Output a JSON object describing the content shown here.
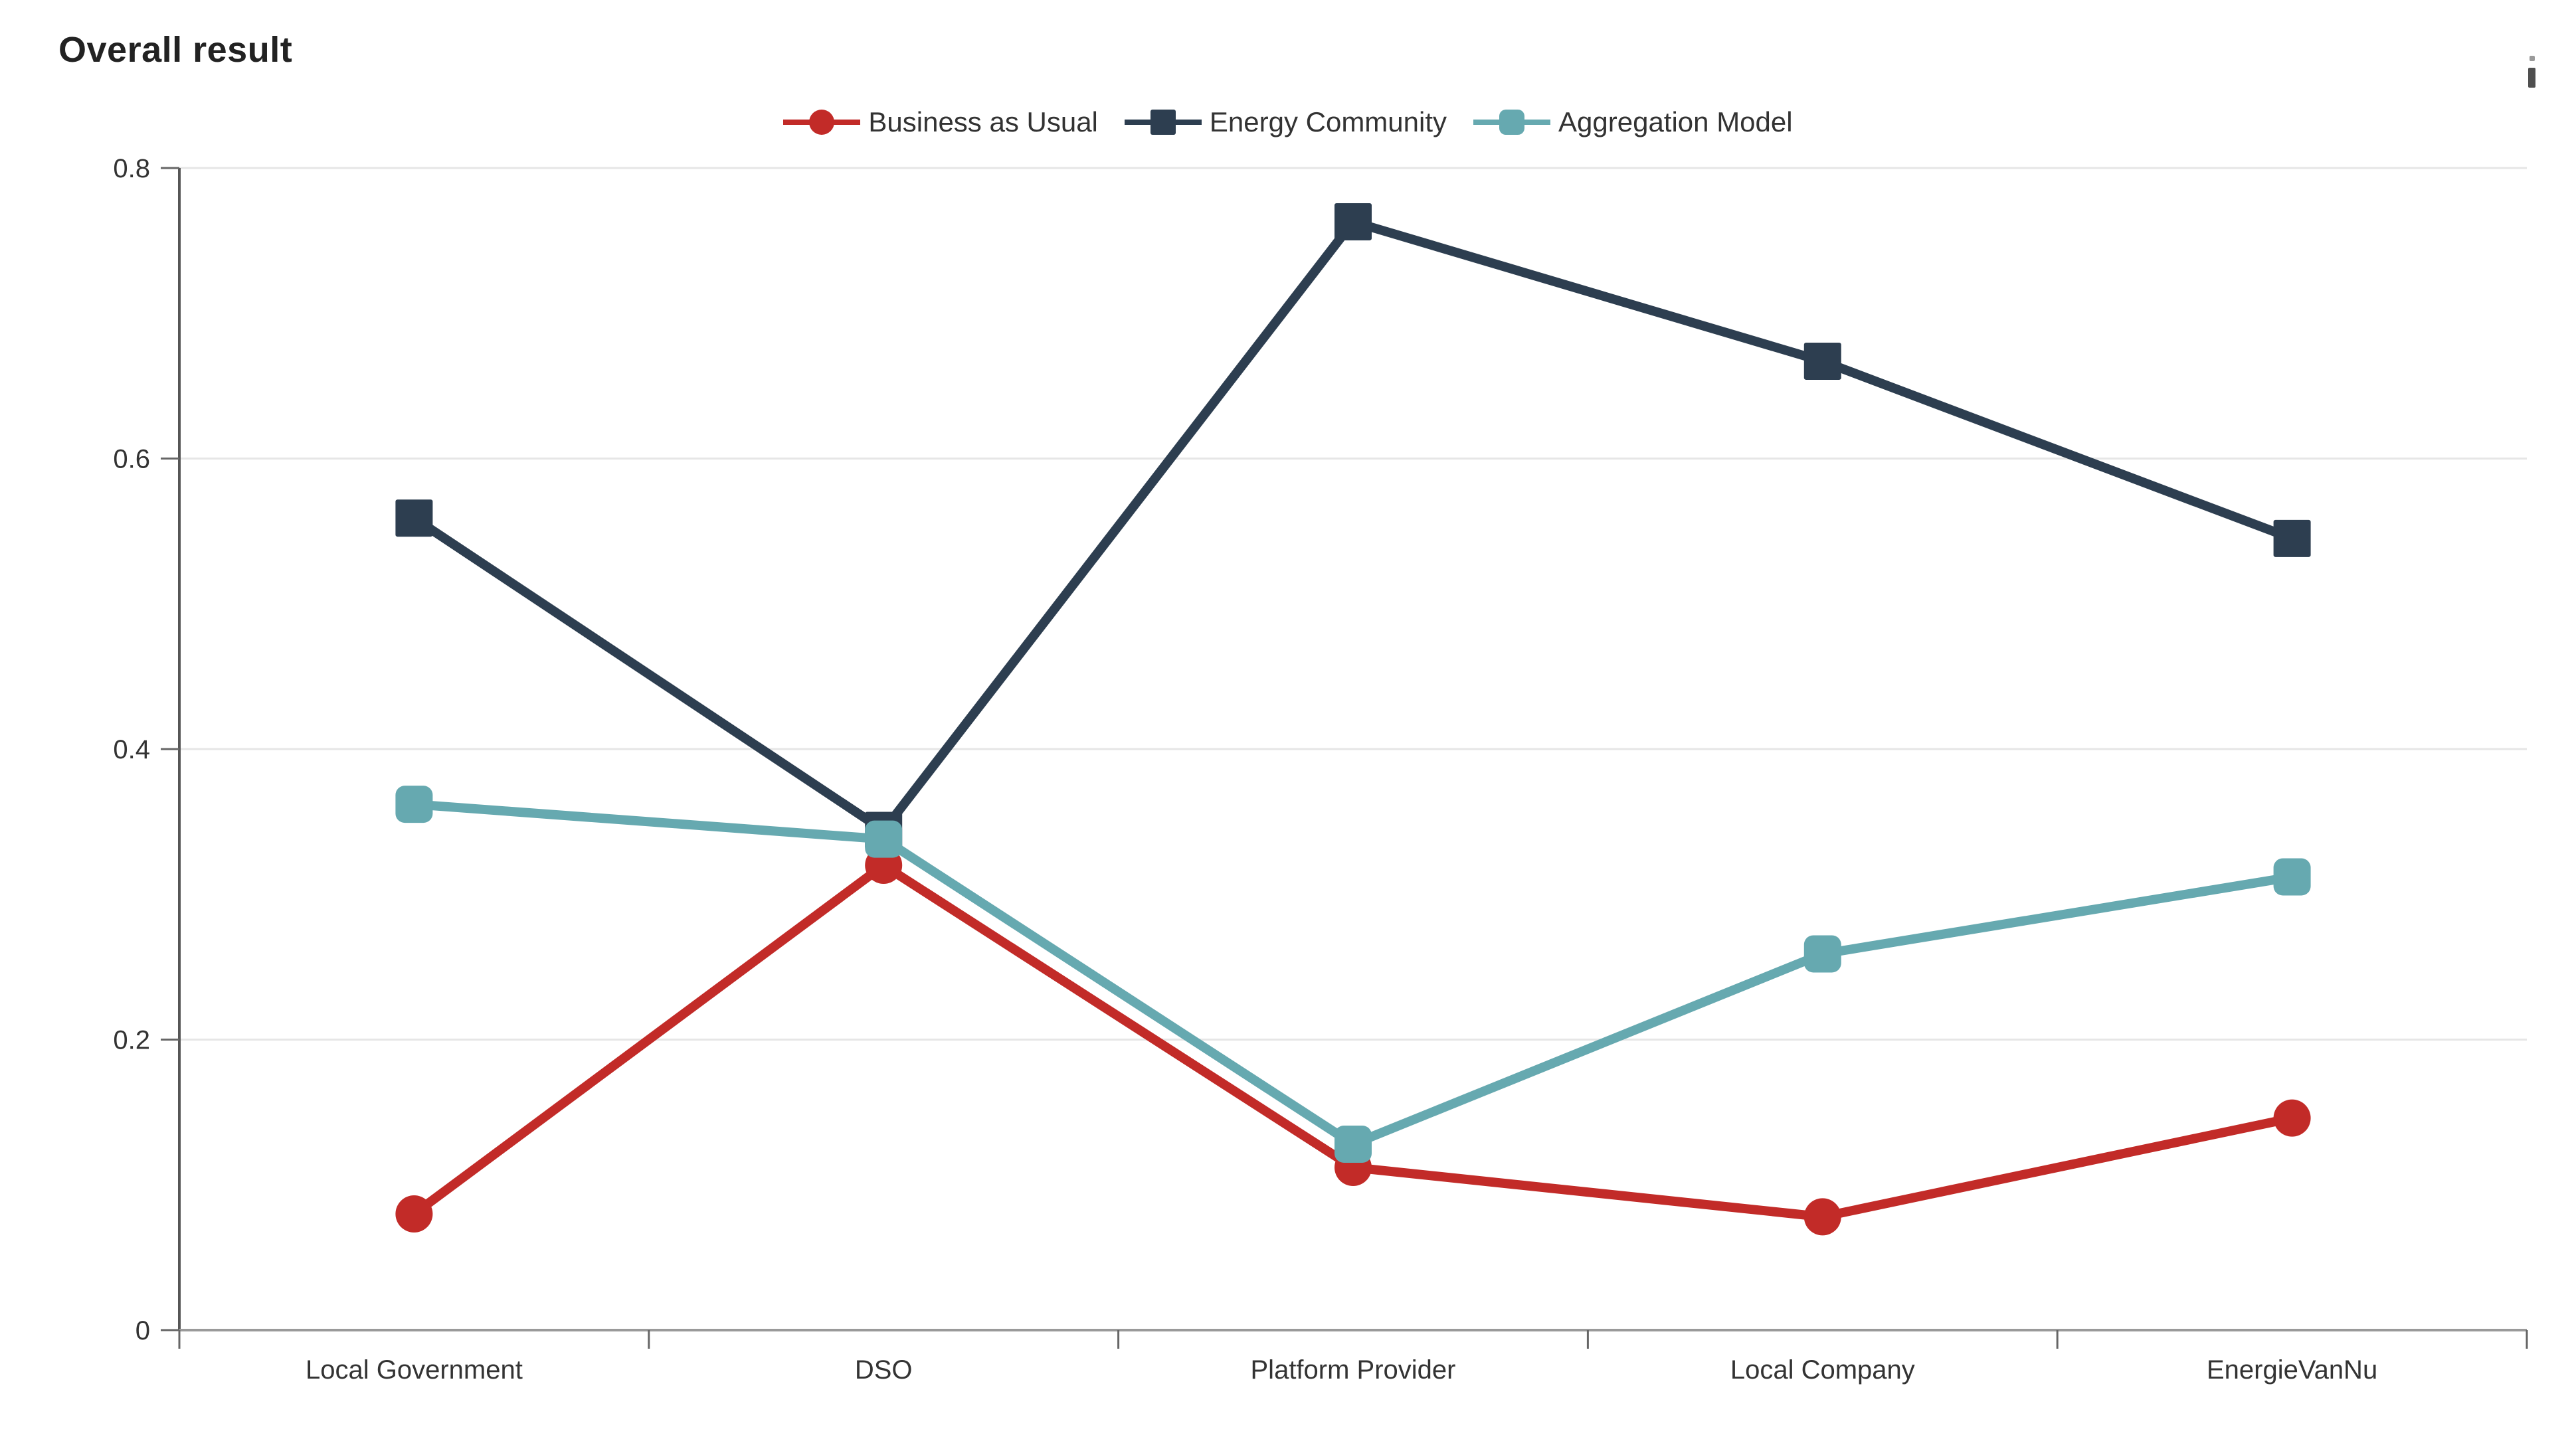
{
  "header": {
    "title": "Overall result"
  },
  "chart_data": {
    "type": "line",
    "title": "Overall result",
    "categories": [
      "Local Government",
      "DSO",
      "Platform Provider",
      "Local Company",
      "EnergieVanNu"
    ],
    "series": [
      {
        "name": "Business as Usual",
        "color": "#c22b28",
        "marker": "circle",
        "values": [
          0.08,
          0.32,
          0.112,
          0.078,
          0.146
        ]
      },
      {
        "name": "Energy Community",
        "color": "#2d3e50",
        "marker": "square",
        "values": [
          0.559,
          0.344,
          0.763,
          0.667,
          0.545
        ]
      },
      {
        "name": "Aggregation Model",
        "color": "#66a9b0",
        "marker": "rounded-square",
        "values": [
          0.362,
          0.338,
          0.128,
          0.259,
          0.312
        ]
      }
    ],
    "xlabel": "",
    "ylabel": "",
    "ylim": [
      0,
      0.8
    ],
    "yticks": [
      0,
      0.2,
      0.4,
      0.6,
      0.8
    ],
    "ytick_labels": [
      "0",
      "0.2",
      "0.4",
      "0.6",
      "0.8"
    ],
    "grid": "horizontal gridlines only",
    "legend_position": "top-center",
    "colors": {
      "grid": "#e6e6e6",
      "y_axis": "#565656",
      "x_axis": "#9a9a9a",
      "tick": "#666666",
      "label": "#333333"
    }
  }
}
